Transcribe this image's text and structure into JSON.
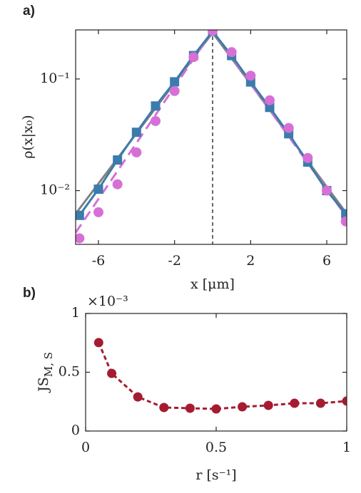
{
  "chart_data": [
    {
      "type": "line",
      "panel_label": "a)",
      "xlabel": "x [μm]",
      "ylabel": "ρ(x|x₀)",
      "xlim": [
        -7.2,
        7.05
      ],
      "xticks": [
        -6,
        -2,
        2,
        6
      ],
      "yscale": "log",
      "ylim": [
        0.0033,
        0.275
      ],
      "yticks": [
        {
          "value": 0.01,
          "label": "10⁻²"
        },
        {
          "value": 0.1,
          "label": "10⁻¹"
        }
      ],
      "vline": {
        "x": 0,
        "color": "#444444",
        "line": "dashed"
      },
      "series": [
        {
          "color": "#808080",
          "line": "solid",
          "marker": "none",
          "x": [
            -7.2,
            0,
            7.05
          ],
          "values": [
            0.0062,
            0.26,
            0.0062
          ]
        },
        {
          "color": "#d670d6",
          "line": "dashed",
          "marker": "none",
          "x": [
            -7.2,
            0,
            7.05
          ],
          "values": [
            0.0042,
            0.27,
            0.0058
          ]
        },
        {
          "color": "#3b7cad",
          "line": "solid",
          "marker": "square",
          "x": [
            -7,
            -6,
            -5,
            -4,
            -3,
            -2,
            -1,
            0,
            1,
            2,
            3,
            4,
            5,
            6,
            7
          ],
          "values": [
            0.006,
            0.0103,
            0.0188,
            0.0333,
            0.0573,
            0.0943,
            0.162,
            0.267,
            0.162,
            0.094,
            0.0556,
            0.0323,
            0.018,
            0.01,
            0.0062
          ]
        },
        {
          "color": "#d670d6",
          "line": "none",
          "marker": "circle",
          "x": [
            -7,
            -6,
            -5,
            -4,
            -3,
            -2,
            -1,
            0,
            1,
            2,
            3,
            4,
            5,
            6,
            7
          ],
          "values": [
            0.00374,
            0.0064,
            0.0114,
            0.022,
            0.042,
            0.078,
            0.157,
            0.27,
            0.174,
            0.107,
            0.0644,
            0.0364,
            0.0196,
            0.01,
            0.0053
          ]
        }
      ]
    },
    {
      "type": "line",
      "panel_label": "b)",
      "xlabel": "r [s⁻¹]",
      "ylabel": {
        "main": "JS",
        "sub": "M, S"
      },
      "y_offset_label": "×10⁻³",
      "xlim": [
        0,
        1
      ],
      "xticks": [
        0,
        0.5,
        1
      ],
      "ylim": [
        0,
        1
      ],
      "yticks": [
        0,
        0.5,
        1
      ],
      "series": [
        {
          "color": "#a51c30",
          "line": "dashed",
          "marker": "circle",
          "x": [
            0.05,
            0.1,
            0.2,
            0.3,
            0.4,
            0.5,
            0.6,
            0.7,
            0.8,
            0.9,
            1.0
          ],
          "values": [
            0.752,
            0.49,
            0.29,
            0.2,
            0.194,
            0.188,
            0.206,
            0.218,
            0.236,
            0.236,
            0.255
          ]
        }
      ]
    }
  ]
}
